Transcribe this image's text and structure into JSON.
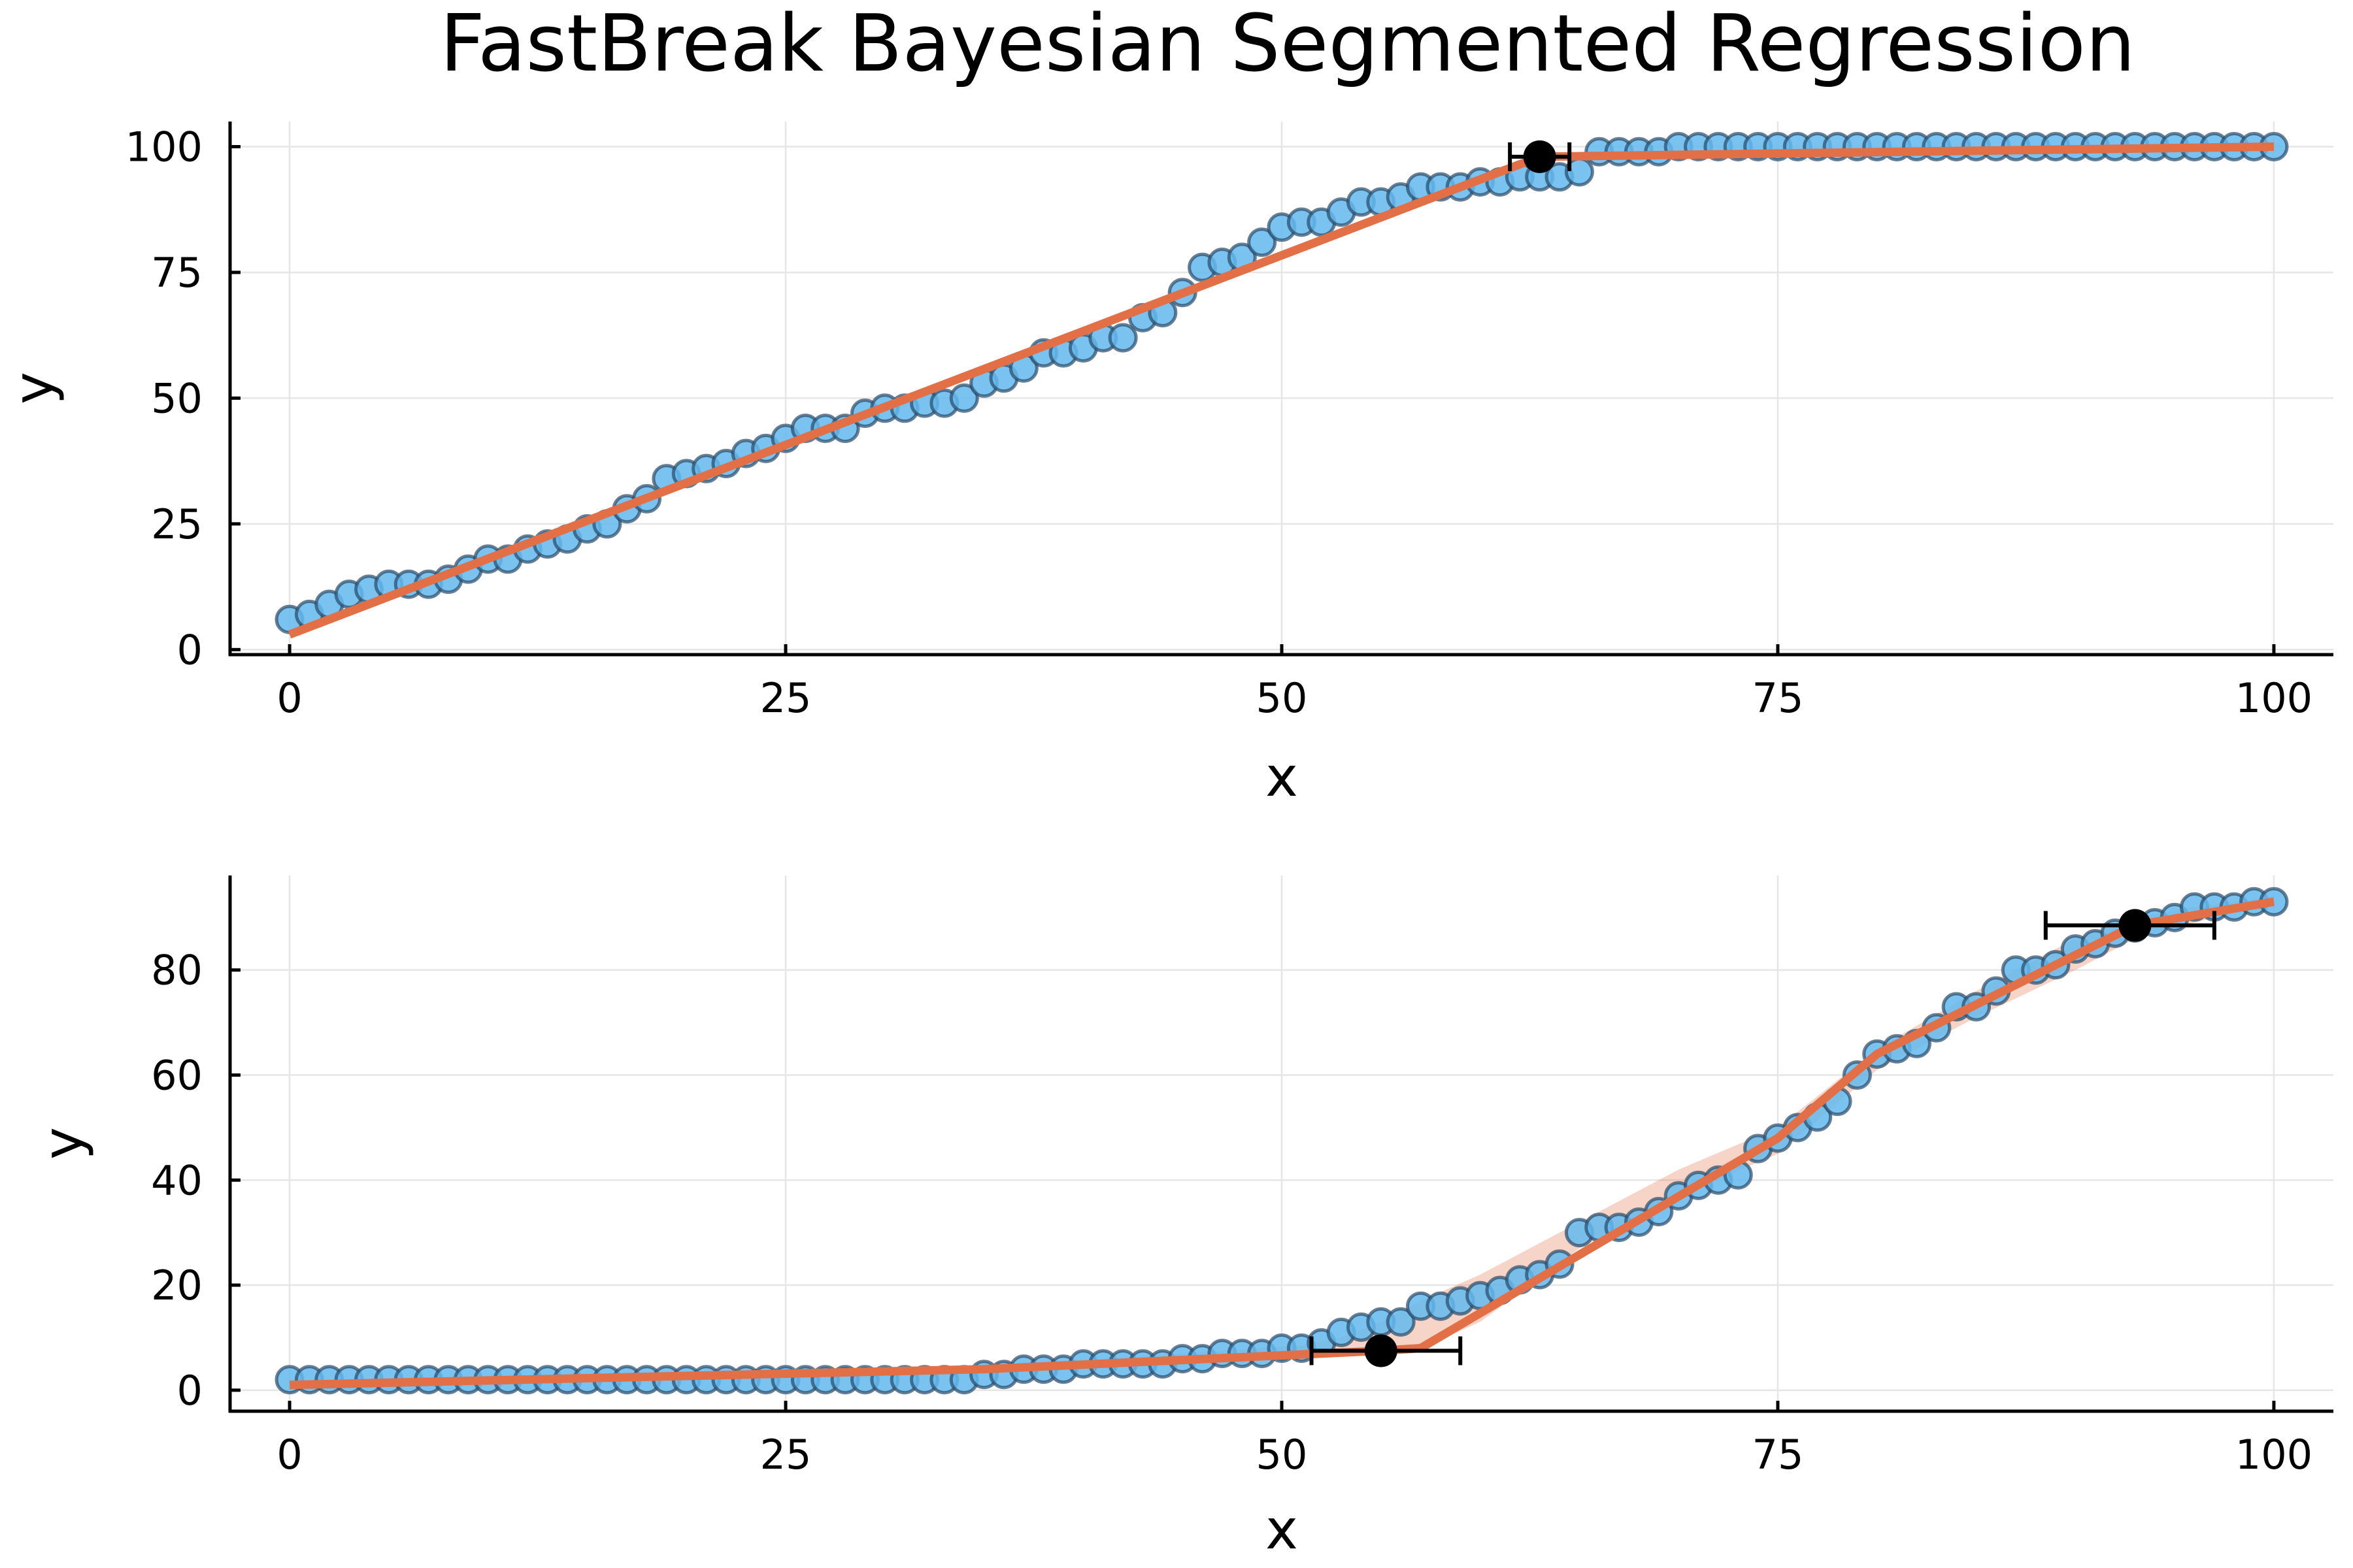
{
  "figure": {
    "title": "FastBreak Bayesian Segmented Regression"
  },
  "chart_data": [
    {
      "type": "scatter",
      "xlabel": "x",
      "ylabel": "y",
      "xlim": [
        -3,
        103
      ],
      "ylim": [
        -1,
        105
      ],
      "x_ticks": [
        0,
        25,
        50,
        75,
        100
      ],
      "x_tick_labels": [
        "0",
        "25",
        "50",
        "75",
        "100"
      ],
      "y_ticks": [
        0,
        25,
        50,
        75,
        100
      ],
      "y_tick_labels": [
        "0",
        "25",
        "50",
        "75",
        "100"
      ],
      "grid": true,
      "legend": "none",
      "colors": {
        "points": "#63b8ee",
        "fit": "#e26f46",
        "breakpoint": "#000000"
      },
      "points": {
        "x": [
          0,
          1,
          2,
          3,
          4,
          5,
          6,
          7,
          8,
          9,
          10,
          11,
          12,
          13,
          14,
          15,
          16,
          17,
          18,
          19,
          20,
          21,
          22,
          23,
          24,
          25,
          26,
          27,
          28,
          29,
          30,
          31,
          32,
          33,
          34,
          35,
          36,
          37,
          38,
          39,
          40,
          41,
          42,
          43,
          44,
          45,
          46,
          47,
          48,
          49,
          50,
          51,
          52,
          53,
          54,
          55,
          56,
          57,
          58,
          59,
          60,
          61,
          62,
          63,
          64,
          65,
          66,
          67,
          68,
          69,
          70,
          71,
          72,
          73,
          74,
          75,
          76,
          77,
          78,
          79,
          80,
          81,
          82,
          83,
          84,
          85,
          86,
          87,
          88,
          89,
          90,
          91,
          92,
          93,
          94,
          95,
          96,
          97,
          98,
          99,
          100
        ],
        "y": [
          6,
          7,
          9,
          11,
          12,
          13,
          13,
          13,
          14,
          16,
          18,
          18,
          20,
          21,
          22,
          24,
          25,
          28,
          30,
          34,
          35,
          36,
          37,
          39,
          40,
          42,
          44,
          44,
          44,
          47,
          48,
          48,
          49,
          49,
          50,
          53,
          54,
          56,
          59,
          59,
          60,
          62,
          62,
          66,
          67,
          71,
          76,
          77,
          78,
          81,
          84,
          85,
          85,
          87,
          89,
          89,
          90,
          92,
          92,
          92,
          93,
          93,
          94,
          94,
          94,
          95,
          99,
          99,
          99,
          99,
          100,
          100,
          100,
          100,
          100,
          100,
          100,
          100,
          100,
          100,
          100,
          100,
          100,
          100,
          100,
          100,
          100,
          100,
          100,
          100,
          100,
          100,
          100,
          100,
          100,
          100,
          100,
          100,
          100,
          100,
          100
        ]
      },
      "fit": {
        "x": [
          0,
          63,
          100
        ],
        "y": [
          3,
          98,
          100
        ]
      },
      "band": null,
      "breakpoints": [
        {
          "x": 63,
          "y": 98,
          "lo": 61.5,
          "hi": 64.5
        }
      ]
    },
    {
      "type": "scatter",
      "xlabel": "x",
      "ylabel": "y",
      "xlim": [
        -3,
        103
      ],
      "ylim": [
        -4,
        98
      ],
      "x_ticks": [
        0,
        25,
        50,
        75,
        100
      ],
      "x_tick_labels": [
        "0",
        "25",
        "50",
        "75",
        "100"
      ],
      "y_ticks": [
        0,
        20,
        40,
        60,
        80
      ],
      "y_tick_labels": [
        "0",
        "20",
        "40",
        "60",
        "80"
      ],
      "grid": true,
      "legend": "none",
      "colors": {
        "points": "#63b8ee",
        "fit": "#e26f46",
        "breakpoint": "#000000"
      },
      "points": {
        "x": [
          0,
          1,
          2,
          3,
          4,
          5,
          6,
          7,
          8,
          9,
          10,
          11,
          12,
          13,
          14,
          15,
          16,
          17,
          18,
          19,
          20,
          21,
          22,
          23,
          24,
          25,
          26,
          27,
          28,
          29,
          30,
          31,
          32,
          33,
          34,
          35,
          36,
          37,
          38,
          39,
          40,
          41,
          42,
          43,
          44,
          45,
          46,
          47,
          48,
          49,
          50,
          51,
          52,
          53,
          54,
          55,
          56,
          57,
          58,
          59,
          60,
          61,
          62,
          63,
          64,
          65,
          66,
          67,
          68,
          69,
          70,
          71,
          72,
          73,
          74,
          75,
          76,
          77,
          78,
          79,
          80,
          81,
          82,
          83,
          84,
          85,
          86,
          87,
          88,
          89,
          90,
          91,
          92,
          93,
          94,
          95,
          96,
          97,
          98,
          99,
          100
        ],
        "y": [
          2,
          2,
          2,
          2,
          2,
          2,
          2,
          2,
          2,
          2,
          2,
          2,
          2,
          2,
          2,
          2,
          2,
          2,
          2,
          2,
          2,
          2,
          2,
          2,
          2,
          2,
          2,
          2,
          2,
          2,
          2,
          2,
          2,
          2,
          2,
          3,
          3,
          4,
          4,
          4,
          5,
          5,
          5,
          5,
          5,
          6,
          6,
          7,
          7,
          7,
          8,
          8,
          9,
          11,
          12,
          13,
          13,
          16,
          16,
          17,
          18,
          19,
          21,
          22,
          24,
          30,
          31,
          31,
          32,
          34,
          37,
          39,
          40,
          41,
          46,
          48,
          50,
          52,
          55,
          60,
          64,
          65,
          66,
          69,
          73,
          73,
          76,
          80,
          80,
          81,
          84,
          85,
          87,
          88,
          89,
          90,
          92,
          92,
          92,
          93,
          93
        ]
      },
      "fit": {
        "x": [
          0,
          35,
          55,
          57,
          75,
          80,
          93,
          100
        ],
        "y": [
          1,
          4,
          7.5,
          8,
          48,
          64,
          88.5,
          93
        ]
      },
      "band": {
        "x": [
          0,
          35,
          51,
          53,
          55,
          57,
          60,
          65,
          70,
          75,
          80,
          85,
          90,
          93,
          96,
          100
        ],
        "lo": [
          0,
          3.5,
          6,
          6.5,
          7,
          8,
          13,
          27,
          37,
          45,
          61,
          71,
          80,
          86,
          89,
          93
        ],
        "hi": [
          1.5,
          4.5,
          8.5,
          10,
          13,
          17,
          22,
          32,
          42,
          50,
          65,
          76,
          86,
          90,
          92,
          94
        ]
      },
      "breakpoints": [
        {
          "x": 55,
          "y": 7.5,
          "lo": 51.5,
          "hi": 59
        },
        {
          "x": 93,
          "y": 88.5,
          "lo": 88.5,
          "hi": 97
        }
      ]
    }
  ]
}
